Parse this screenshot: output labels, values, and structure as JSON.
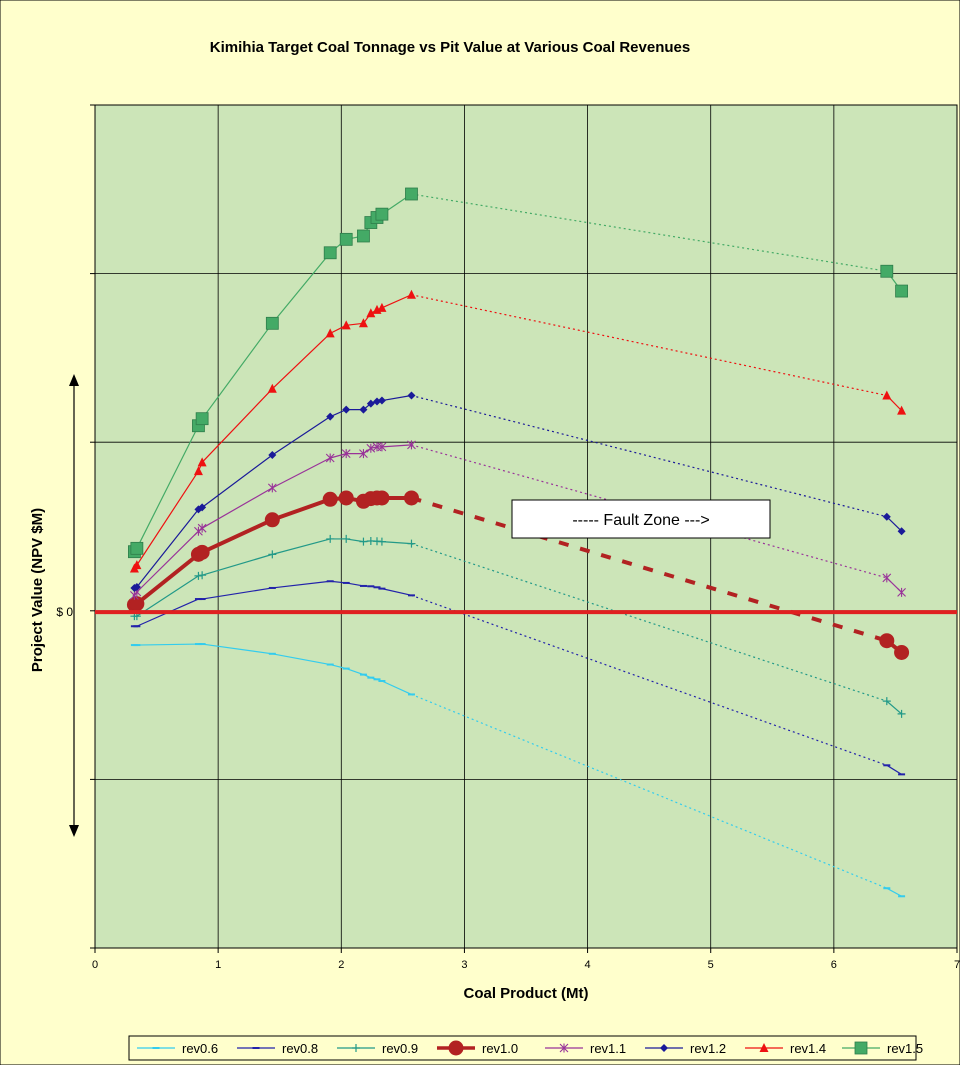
{
  "chart_data": {
    "type": "line",
    "title": "Kimihia Target Coal Tonnage vs Pit Value at Various Coal Revenues",
    "xlabel": "Coal Product (Mt)",
    "ylabel": "Project Value (NPV $M)",
    "xlim": [
      0,
      7
    ],
    "ylim": [
      -10,
      15.1
    ],
    "x_ticks": [
      "0",
      "1",
      "2",
      "3",
      "4",
      "5",
      "6",
      "7"
    ],
    "zero_label": "$ 0",
    "annotation": "----- Fault Zone --->",
    "grid": true,
    "legend_position": "bottom",
    "colors": {
      "page_background": "#FFFFCC",
      "plot_background": "#CCE5B8",
      "zero_line": "#E02020"
    },
    "series": [
      {
        "name": "rev0.6",
        "color": "#33CCEE",
        "marker": "dash",
        "width": 1.2,
        "dotted_tail": true,
        "points": [
          [
            0.32,
            -0.98
          ],
          [
            0.34,
            -0.98
          ],
          [
            0.84,
            -0.95
          ],
          [
            0.87,
            -0.95
          ],
          [
            1.44,
            -1.24
          ],
          [
            1.91,
            -1.56
          ],
          [
            2.04,
            -1.68
          ],
          [
            2.18,
            -1.86
          ],
          [
            2.24,
            -1.95
          ],
          [
            2.29,
            -2.0
          ],
          [
            2.33,
            -2.05
          ],
          [
            2.57,
            -2.45
          ],
          [
            6.43,
            -8.22
          ],
          [
            6.55,
            -8.46
          ]
        ]
      },
      {
        "name": "rev0.8",
        "color": "#2222AA",
        "marker": "dash",
        "width": 1.2,
        "dotted_tail": true,
        "points": [
          [
            0.32,
            -0.42
          ],
          [
            0.34,
            -0.42
          ],
          [
            0.84,
            0.39
          ],
          [
            0.87,
            0.39
          ],
          [
            1.44,
            0.72
          ],
          [
            1.91,
            0.92
          ],
          [
            2.04,
            0.87
          ],
          [
            2.18,
            0.78
          ],
          [
            2.24,
            0.77
          ],
          [
            2.29,
            0.74
          ],
          [
            2.33,
            0.7
          ],
          [
            2.57,
            0.5
          ],
          [
            6.43,
            -4.56
          ],
          [
            6.55,
            -4.83
          ]
        ]
      },
      {
        "name": "rev0.9",
        "color": "#229988",
        "marker": "plus",
        "width": 1.2,
        "dotted_tail": true,
        "points": [
          [
            0.32,
            -0.12
          ],
          [
            0.34,
            -0.12
          ],
          [
            0.84,
            1.08
          ],
          [
            0.87,
            1.1
          ],
          [
            1.44,
            1.72
          ],
          [
            1.91,
            2.18
          ],
          [
            2.04,
            2.18
          ],
          [
            2.18,
            2.1
          ],
          [
            2.24,
            2.12
          ],
          [
            2.29,
            2.11
          ],
          [
            2.33,
            2.1
          ],
          [
            2.57,
            2.04
          ],
          [
            6.43,
            -2.65
          ],
          [
            6.55,
            -3.03
          ]
        ]
      },
      {
        "name": "rev1.0",
        "color": "#B22222",
        "marker": "circle",
        "width": 4,
        "dotted_tail": true,
        "points": [
          [
            0.32,
            0.22
          ],
          [
            0.34,
            0.25
          ],
          [
            0.84,
            1.72
          ],
          [
            0.87,
            1.78
          ],
          [
            1.44,
            2.75
          ],
          [
            1.91,
            3.36
          ],
          [
            2.04,
            3.4
          ],
          [
            2.18,
            3.3
          ],
          [
            2.24,
            3.38
          ],
          [
            2.29,
            3.4
          ],
          [
            2.33,
            3.4
          ],
          [
            2.57,
            3.4
          ],
          [
            6.43,
            -0.85
          ],
          [
            6.55,
            -1.2
          ]
        ]
      },
      {
        "name": "rev1.1",
        "color": "#993399",
        "marker": "star",
        "width": 1.2,
        "dotted_tail": true,
        "points": [
          [
            0.32,
            0.5
          ],
          [
            0.34,
            0.6
          ],
          [
            0.84,
            2.41
          ],
          [
            0.87,
            2.5
          ],
          [
            1.44,
            3.7
          ],
          [
            1.91,
            4.59
          ],
          [
            2.04,
            4.72
          ],
          [
            2.18,
            4.72
          ],
          [
            2.24,
            4.88
          ],
          [
            2.29,
            4.92
          ],
          [
            2.33,
            4.92
          ],
          [
            2.57,
            4.98
          ],
          [
            6.43,
            1.02
          ],
          [
            6.55,
            0.59
          ]
        ]
      },
      {
        "name": "rev1.2",
        "color": "#1A1A99",
        "marker": "diamond",
        "width": 1.2,
        "dotted_tail": true,
        "points": [
          [
            0.32,
            0.72
          ],
          [
            0.34,
            0.75
          ],
          [
            0.84,
            3.06
          ],
          [
            0.87,
            3.12
          ],
          [
            1.44,
            4.68
          ],
          [
            1.91,
            5.82
          ],
          [
            2.04,
            6.03
          ],
          [
            2.18,
            6.03
          ],
          [
            2.24,
            6.21
          ],
          [
            2.29,
            6.27
          ],
          [
            2.33,
            6.3
          ],
          [
            2.57,
            6.45
          ],
          [
            6.43,
            2.84
          ],
          [
            6.55,
            2.41
          ]
        ]
      },
      {
        "name": "rev1.4",
        "color": "#EE1111",
        "marker": "triangle",
        "width": 1.2,
        "dotted_tail": true,
        "points": [
          [
            0.32,
            1.3
          ],
          [
            0.34,
            1.4
          ],
          [
            0.84,
            4.2
          ],
          [
            0.87,
            4.46
          ],
          [
            1.44,
            6.65
          ],
          [
            1.91,
            8.3
          ],
          [
            2.04,
            8.54
          ],
          [
            2.18,
            8.6
          ],
          [
            2.24,
            8.9
          ],
          [
            2.29,
            9.0
          ],
          [
            2.33,
            9.06
          ],
          [
            2.57,
            9.45
          ],
          [
            6.43,
            6.45
          ],
          [
            6.55,
            6.0
          ]
        ]
      },
      {
        "name": "rev1.5",
        "color": "#44AA66",
        "marker": "square",
        "width": 1.2,
        "dotted_tail": true,
        "points": [
          [
            0.32,
            1.8
          ],
          [
            0.34,
            1.9
          ],
          [
            0.84,
            5.55
          ],
          [
            0.87,
            5.76
          ],
          [
            1.44,
            8.6
          ],
          [
            1.91,
            10.7
          ],
          [
            2.04,
            11.1
          ],
          [
            2.18,
            11.2
          ],
          [
            2.24,
            11.6
          ],
          [
            2.29,
            11.75
          ],
          [
            2.33,
            11.85
          ],
          [
            2.57,
            12.45
          ],
          [
            6.43,
            10.15
          ],
          [
            6.55,
            9.56
          ]
        ]
      }
    ]
  }
}
